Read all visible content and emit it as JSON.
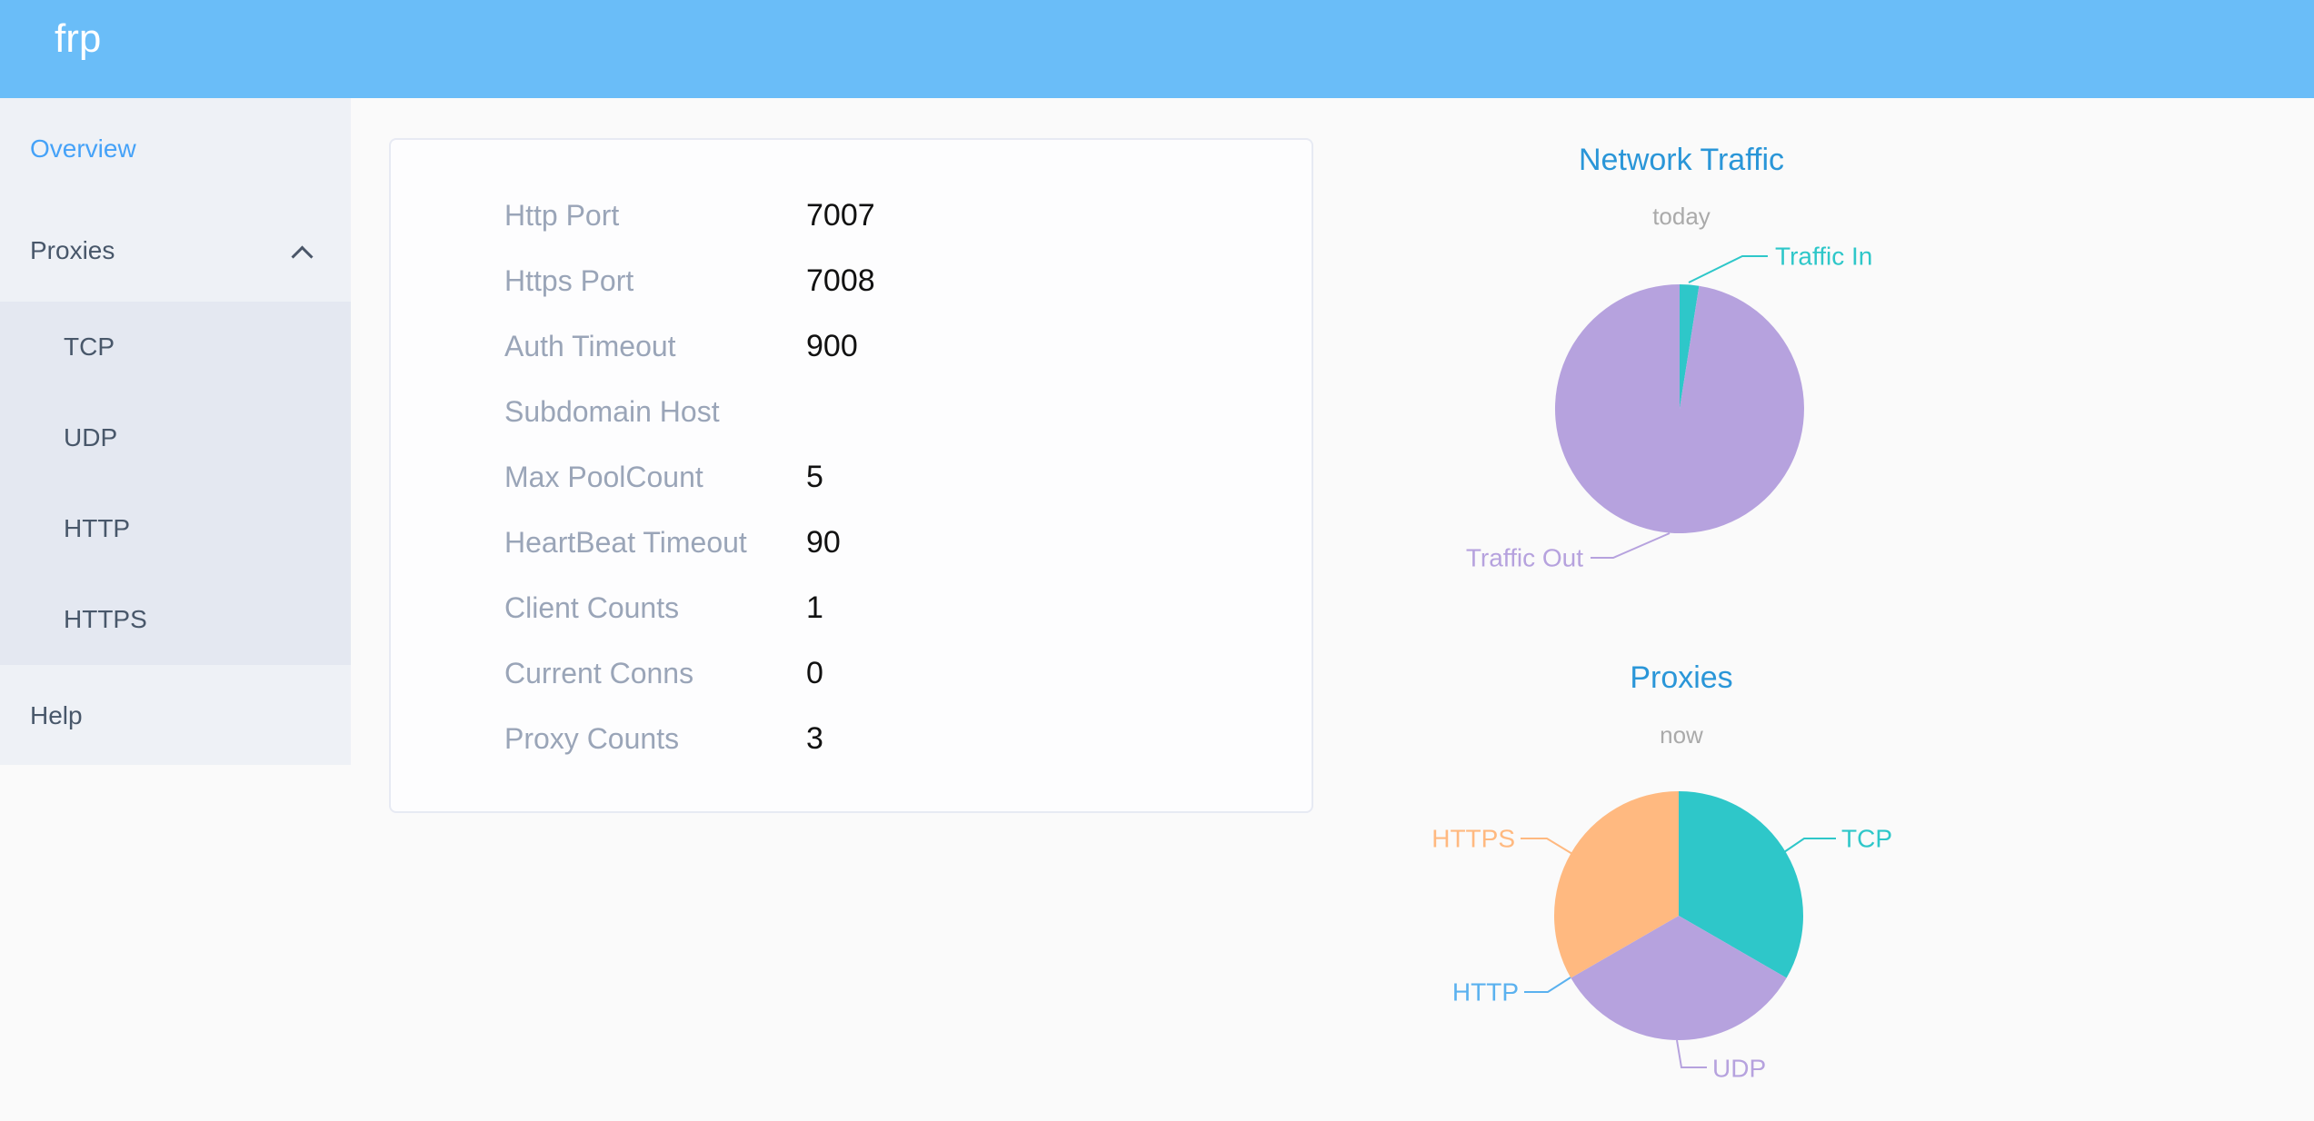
{
  "header": {
    "logo": "frp"
  },
  "sidebar": {
    "items": [
      {
        "label": "Overview",
        "active": true
      },
      {
        "label": "Proxies",
        "expanded": true
      },
      {
        "label": "Help"
      }
    ],
    "proxies_children": [
      "TCP",
      "UDP",
      "HTTP",
      "HTTPS"
    ],
    "active_color": "#45a2f8",
    "text_color": "#48576a"
  },
  "server_info": {
    "rows": [
      {
        "label": "Http Port",
        "value": "7007"
      },
      {
        "label": "Https Port",
        "value": "7008"
      },
      {
        "label": "Auth Timeout",
        "value": "900"
      },
      {
        "label": "Subdomain Host",
        "value": ""
      },
      {
        "label": "Max PoolCount",
        "value": "5"
      },
      {
        "label": "HeartBeat Timeout",
        "value": "90"
      },
      {
        "label": "Client Counts",
        "value": "1"
      },
      {
        "label": "Current Conns",
        "value": "0"
      },
      {
        "label": "Proxy Counts",
        "value": "3"
      }
    ]
  },
  "chart_data": [
    {
      "type": "pie",
      "title": "Network Traffic",
      "subtitle": "today",
      "legend": "none",
      "values_are_estimated_percent": true,
      "series": [
        {
          "name": "Traffic In",
          "value": 2.5,
          "color": "#2ec7c9"
        },
        {
          "name": "Traffic Out",
          "value": 97.5,
          "color": "#b6a2de"
        }
      ]
    },
    {
      "type": "pie",
      "title": "Proxies",
      "subtitle": "now",
      "legend": "none",
      "series": [
        {
          "name": "TCP",
          "value": 1,
          "color": "#2ec7c9"
        },
        {
          "name": "UDP",
          "value": 1,
          "color": "#b6a2de"
        },
        {
          "name": "HTTP",
          "value": 0,
          "color": "#5ab1ef"
        },
        {
          "name": "HTTPS",
          "value": 1,
          "color": "#ffb980"
        }
      ]
    }
  ],
  "theme": {
    "header_bg": "#6abdf8",
    "page_bg": "#fafafa",
    "sidebar_bg": "#eef1f6",
    "submenu_bg": "#e4e8f1",
    "chart_title_color": "#2a96d8",
    "chart_subtitle_color": "#aaaaaa",
    "card_label_color": "#9aa5b8",
    "card_value_color": "#111111"
  }
}
